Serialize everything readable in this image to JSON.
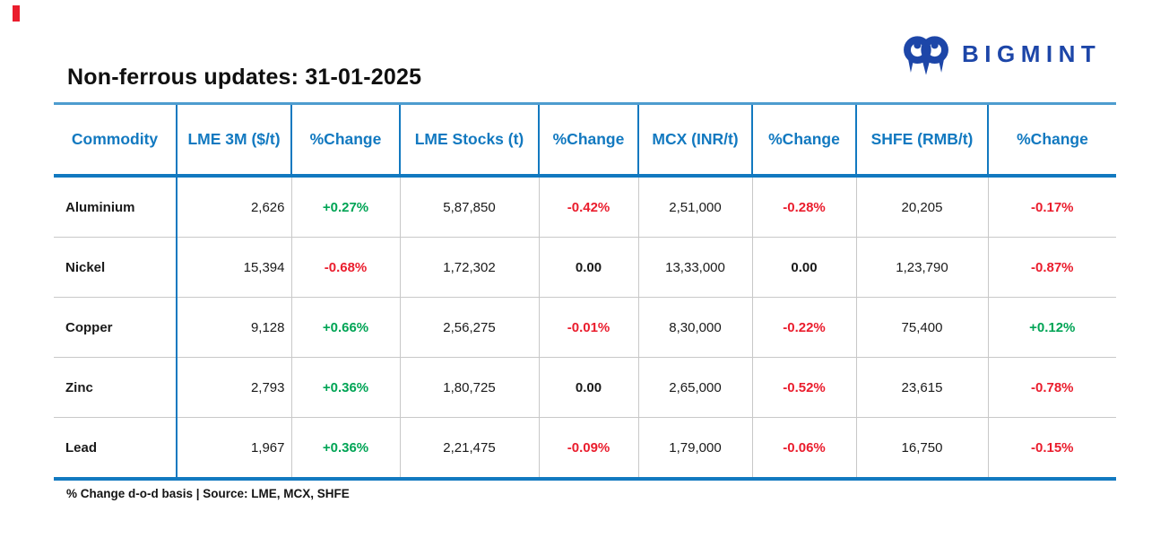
{
  "brand": {
    "name": "BIGMINT"
  },
  "title": "Non-ferrous updates: 31-01-2025",
  "footer": "% Change d-o-d basis | Source: LME, MCX, SHFE",
  "chart_data": {
    "type": "table",
    "title": "Non-ferrous updates: 31-01-2025",
    "columns": [
      "Commodity",
      "LME 3M ($/t)",
      "%Change",
      "LME Stocks (t)",
      "%Change",
      "MCX (INR/t)",
      "%Change",
      "SHFE (RMB/t)",
      "%Change"
    ],
    "rows": [
      [
        "Aluminium",
        "2,626",
        "+0.27%",
        "5,87,850",
        "-0.42%",
        "2,51,000",
        "-0.28%",
        "20,205",
        "-0.17%"
      ],
      [
        "Nickel",
        "15,394",
        "-0.68%",
        "1,72,302",
        "0.00",
        "13,33,000",
        "0.00",
        "1,23,790",
        "-0.87%"
      ],
      [
        "Copper",
        "9,128",
        "+0.66%",
        "2,56,275",
        "-0.01%",
        "8,30,000",
        "-0.22%",
        "75,400",
        "+0.12%"
      ],
      [
        "Zinc",
        "2,793",
        "+0.36%",
        "1,80,725",
        "0.00",
        "2,65,000",
        "-0.52%",
        "23,615",
        "-0.78%"
      ],
      [
        "Lead",
        "1,967",
        "+0.36%",
        "2,21,475",
        "-0.09%",
        "1,79,000",
        "-0.06%",
        "16,750",
        "-0.15%"
      ]
    ],
    "notes": "% Change d-o-d basis | Source: LME, MCX, SHFE"
  },
  "colors": {
    "positive_green": "#00a455",
    "negative_red": "#ea1d2d",
    "neutral_black": "#1a1a1a",
    "table_blue": "#1279c0",
    "brand_navy": "#1d46a8",
    "accent_red_mark": "#ea1d2d"
  }
}
